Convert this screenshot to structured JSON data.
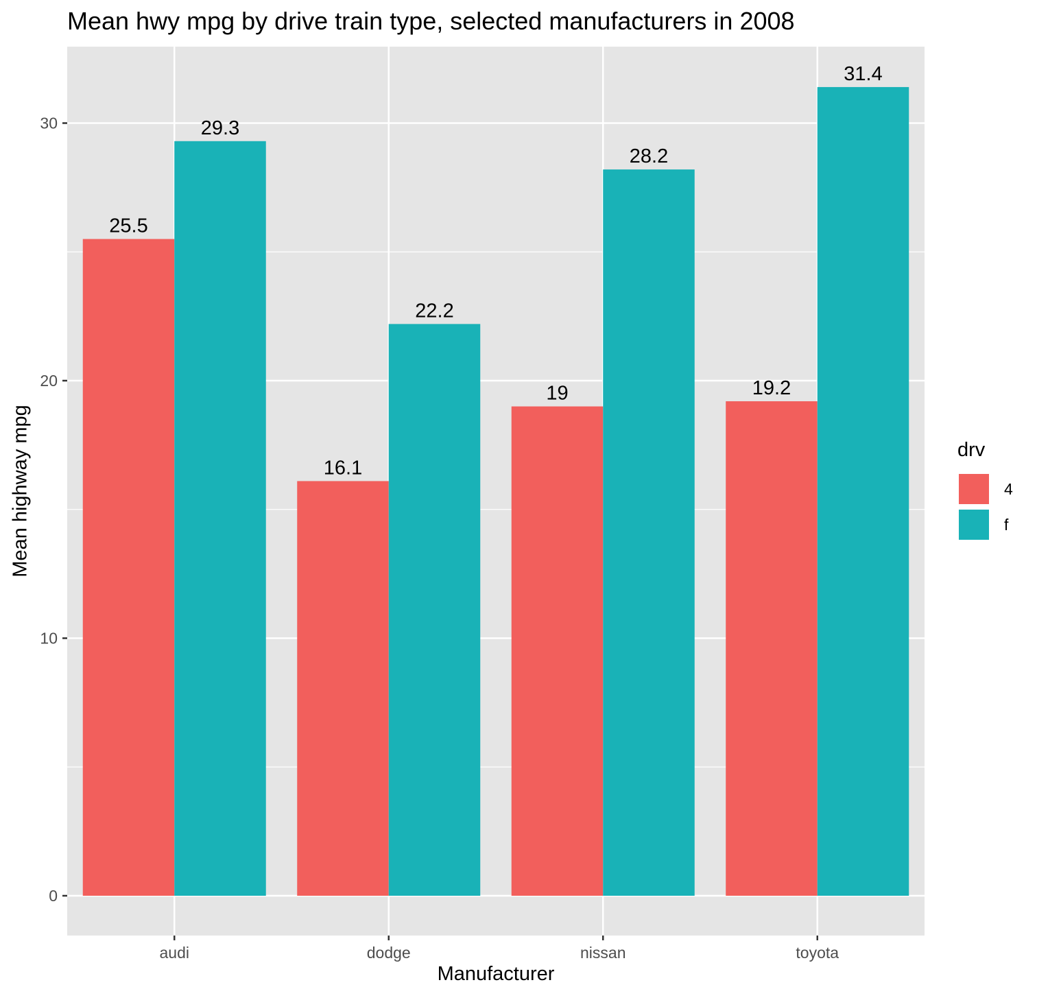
{
  "chart_data": {
    "type": "bar",
    "title": "Mean hwy mpg by drive train type, selected manufacturers in 2008",
    "xlabel": "Manufacturer",
    "ylabel": "Mean highway mpg",
    "categories": [
      "audi",
      "dodge",
      "nissan",
      "toyota"
    ],
    "series": [
      {
        "name": "4",
        "color": "#F25F5C",
        "values": [
          25.5,
          16.1,
          19,
          19.2
        ],
        "labels": [
          "25.5",
          "16.1",
          "19",
          "19.2"
        ]
      },
      {
        "name": "f",
        "color": "#19B2B7",
        "values": [
          29.3,
          22.2,
          28.2,
          31.4
        ],
        "labels": [
          "29.3",
          "22.2",
          "28.2",
          "31.4"
        ]
      }
    ],
    "yticks": [
      0,
      10,
      20,
      30
    ],
    "ytick_labels": [
      "0",
      "10",
      "20",
      "30"
    ],
    "ylim": [
      -1.5,
      32.9
    ],
    "grid": true,
    "legend": {
      "title": "drv",
      "position": "right"
    },
    "panel_color": "#E5E5E5"
  }
}
